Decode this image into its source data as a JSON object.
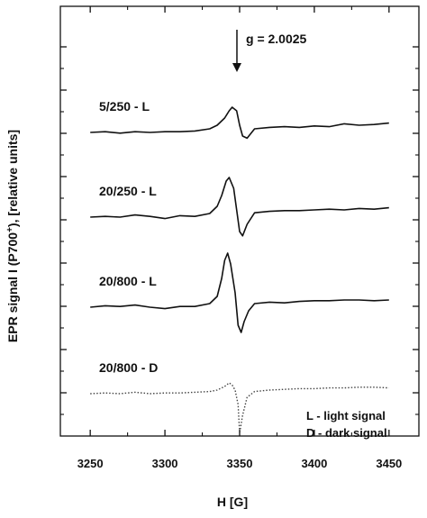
{
  "chart_data": {
    "type": "line",
    "xlabel": "H [G]",
    "ylabel": "EPR signal I (P700⁺), [relative units]",
    "ylabel_parts": [
      "EPR signal I (P700",
      "+",
      "), [relative units]"
    ],
    "xlim": [
      3230,
      3470
    ],
    "xticks": [
      3250,
      3300,
      3350,
      3400,
      3450
    ],
    "y_units": "relative",
    "grid": false,
    "annotation": {
      "text": "g = 2.0025",
      "x": 3348
    },
    "legend": {
      "placement": "bottom-right",
      "entries": [
        "L  - light signal",
        "D - dark signal"
      ]
    },
    "series": [
      {
        "name": "5/250 - L",
        "style": "solid",
        "x": [
          3250,
          3260,
          3270,
          3280,
          3290,
          3300,
          3310,
          3320,
          3330,
          3335,
          3340,
          3343,
          3345,
          3348,
          3350,
          3352,
          3355,
          3360,
          3370,
          3380,
          3390,
          3400,
          3410,
          3420,
          3430,
          3440,
          3450
        ],
        "y": [
          0.0,
          0.1,
          -0.1,
          0.1,
          0.0,
          0.1,
          0.1,
          0.2,
          0.5,
          1.0,
          2.0,
          3.0,
          3.5,
          3.0,
          1.0,
          -0.5,
          -0.8,
          0.5,
          0.7,
          0.8,
          0.7,
          0.9,
          0.8,
          1.2,
          1.0,
          1.1,
          1.3
        ]
      },
      {
        "name": "20/250 - L",
        "style": "solid",
        "x": [
          3250,
          3260,
          3270,
          3280,
          3290,
          3300,
          3310,
          3320,
          3330,
          3335,
          3338,
          3341,
          3343,
          3346,
          3348,
          3350,
          3352,
          3355,
          3360,
          3370,
          3380,
          3390,
          3400,
          3410,
          3420,
          3430,
          3440,
          3450
        ],
        "y": [
          0.0,
          0.1,
          0.0,
          0.3,
          0.1,
          -0.2,
          0.2,
          0.1,
          0.5,
          1.5,
          3.0,
          5.0,
          5.5,
          4.0,
          1.0,
          -2.0,
          -2.6,
          -1.0,
          0.6,
          0.8,
          0.9,
          0.9,
          1.0,
          1.1,
          1.0,
          1.2,
          1.1,
          1.3
        ]
      },
      {
        "name": "20/800 - L",
        "style": "solid",
        "x": [
          3250,
          3260,
          3270,
          3280,
          3290,
          3300,
          3310,
          3320,
          3330,
          3335,
          3338,
          3340,
          3342,
          3344,
          3347,
          3349,
          3351,
          3353,
          3356,
          3360,
          3370,
          3380,
          3390,
          3400,
          3410,
          3420,
          3430,
          3440,
          3450
        ],
        "y": [
          0.0,
          0.2,
          0.1,
          0.3,
          0.0,
          -0.2,
          0.1,
          0.1,
          0.5,
          1.5,
          4.0,
          6.5,
          7.5,
          6.0,
          2.0,
          -2.5,
          -3.5,
          -2.0,
          -0.5,
          0.5,
          0.7,
          0.6,
          0.8,
          0.9,
          0.9,
          1.0,
          1.0,
          0.9,
          1.0
        ]
      },
      {
        "name": "20/800 - D",
        "style": "dotted",
        "x": [
          3250,
          3260,
          3270,
          3280,
          3290,
          3300,
          3310,
          3320,
          3330,
          3335,
          3340,
          3343,
          3345,
          3347,
          3349,
          3350,
          3352,
          3355,
          3360,
          3370,
          3380,
          3390,
          3400,
          3410,
          3420,
          3430,
          3440,
          3450
        ],
        "y": [
          0.0,
          0.1,
          0.0,
          0.2,
          0.0,
          0.1,
          0.1,
          0.2,
          0.3,
          0.5,
          1.0,
          1.5,
          1.2,
          0.5,
          -1.5,
          -5.5,
          -3.0,
          -0.5,
          0.3,
          0.5,
          0.6,
          0.7,
          0.7,
          0.8,
          0.8,
          0.9,
          0.9,
          0.8
        ]
      }
    ]
  }
}
